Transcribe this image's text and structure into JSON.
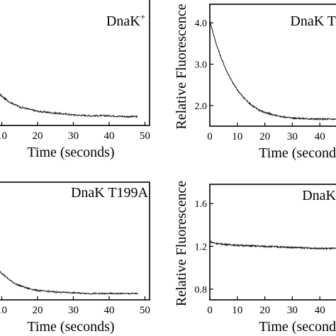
{
  "chart_data": [
    {
      "type": "line",
      "title": "DnaK+",
      "title_base": "DnaK",
      "title_sup": "+",
      "xlabel": "Time (seconds)",
      "ylabel": "",
      "xlim": [
        0,
        50
      ],
      "xticks": [
        10,
        20,
        30,
        40,
        50
      ],
      "xtick_labels": [
        "10",
        "20",
        "30",
        "40",
        "50"
      ],
      "yticks": [],
      "ytick_labels": [],
      "series": [
        {
          "x": [
            0,
            2,
            4,
            6,
            8,
            10,
            12,
            15,
            18,
            20,
            25,
            30,
            35,
            40,
            45,
            48
          ],
          "y": [
            2.6,
            2.25,
            2.0,
            1.84,
            1.72,
            1.63,
            1.57,
            1.51,
            1.48,
            1.46,
            1.44,
            1.42,
            1.41,
            1.41,
            1.4,
            1.4
          ]
        }
      ],
      "grid": false,
      "legend": "none"
    },
    {
      "type": "line",
      "title": "DnaK T",
      "title_base": "DnaK T",
      "title_sup": "",
      "xlabel": "Time (second",
      "ylabel": "Relative Fluorescence",
      "xlim": [
        0,
        50
      ],
      "ylim": [
        1.5,
        4.45
      ],
      "xticks": [
        0,
        10,
        20,
        30,
        40
      ],
      "xtick_labels": [
        "0",
        "10",
        "20",
        "30",
        "40"
      ],
      "yticks": [
        4.0,
        3.0,
        2.0
      ],
      "ytick_labels": [
        "4.0",
        "3.0",
        "2.0"
      ],
      "series": [
        {
          "x": [
            0,
            2,
            4,
            6,
            8,
            10,
            12,
            14,
            16,
            18,
            20,
            25,
            30,
            35,
            40,
            45,
            50
          ],
          "y": [
            4.05,
            3.56,
            3.17,
            2.85,
            2.59,
            2.38,
            2.21,
            2.08,
            1.97,
            1.89,
            1.83,
            1.74,
            1.7,
            1.68,
            1.67,
            1.67,
            1.67
          ]
        }
      ],
      "grid": false,
      "legend": "none"
    },
    {
      "type": "line",
      "title": "DnaK T199A",
      "title_base": "DnaK T199A",
      "title_sup": "",
      "xlabel": "Time (seconds)",
      "ylabel": "",
      "xlim": [
        0,
        50
      ],
      "xticks": [
        10,
        20,
        30,
        40,
        50
      ],
      "xtick_labels": [
        "10",
        "20",
        "30",
        "40",
        "50"
      ],
      "yticks": [],
      "ytick_labels": [],
      "series": [
        {
          "x": [
            0,
            2,
            4,
            6,
            8,
            10,
            12,
            14,
            17,
            20,
            25,
            30,
            35,
            40,
            45,
            48
          ],
          "y": [
            2.6,
            2.33,
            2.1,
            1.9,
            1.75,
            1.64,
            1.56,
            1.5,
            1.45,
            1.42,
            1.4,
            1.39,
            1.38,
            1.38,
            1.38,
            1.38
          ]
        }
      ],
      "grid": false,
      "legend": "none"
    },
    {
      "type": "line",
      "title": "DnaK",
      "title_base": "DnaK",
      "title_sup": "",
      "xlabel": "Time (second",
      "ylabel": "Relative Fluorescence",
      "xlim": [
        0,
        50
      ],
      "ylim": [
        0.7,
        1.78
      ],
      "xticks": [
        0,
        10,
        20,
        30,
        40
      ],
      "xtick_labels": [
        "0",
        "10",
        "20",
        "30",
        "40"
      ],
      "yticks": [
        1.6,
        1.2,
        0.8
      ],
      "ytick_labels": [
        "1.6",
        "1.2",
        "0.8"
      ],
      "series": [
        {
          "x": [
            0,
            1,
            3,
            5,
            10,
            15,
            20,
            25,
            30,
            35,
            40,
            45,
            50
          ],
          "y": [
            1.25,
            1.235,
            1.225,
            1.22,
            1.21,
            1.205,
            1.2,
            1.195,
            1.19,
            1.185,
            1.18,
            1.18,
            1.175
          ]
        }
      ],
      "grid": false,
      "legend": "none"
    }
  ]
}
